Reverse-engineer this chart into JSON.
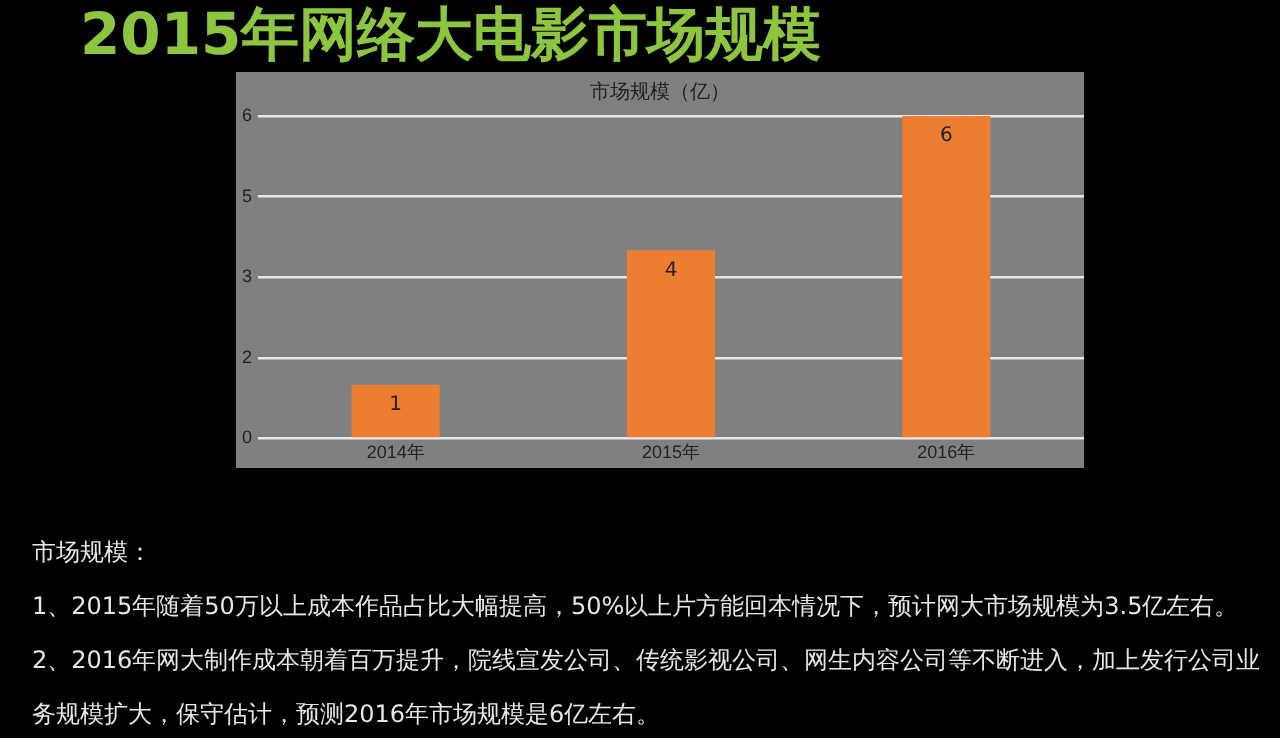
{
  "chart_data": {
    "type": "bar",
    "title": "2015年网络大电影市场规模",
    "subtitle": "市场规模（亿）",
    "categories": [
      "2014年",
      "2015年",
      "2016年"
    ],
    "values": [
      1,
      3.5,
      6
    ],
    "value_labels": [
      "1",
      "4",
      "6"
    ],
    "color": "#ed7d31",
    "ylim": [
      0,
      6
    ],
    "yticks": [
      0,
      {
        "value": 1.5,
        "label": "2"
      },
      3,
      {
        "value": 4.5,
        "label": "5"
      },
      6
    ],
    "grid": "y",
    "annotations": [
      "市场规模：",
      "1、2015年随着50万以上成本作品占比大幅提高，50%以上片方能回本情况下，预计网大市场规模为3.5亿左右。",
      "2、2016年网大制作成本朝着百万提升，院线宣发公司、传统影视公司、网生内容公司等不断进入，加上发行公司业务规模扩大，保守估计，预测2016年市场规模是6亿左右。"
    ]
  }
}
